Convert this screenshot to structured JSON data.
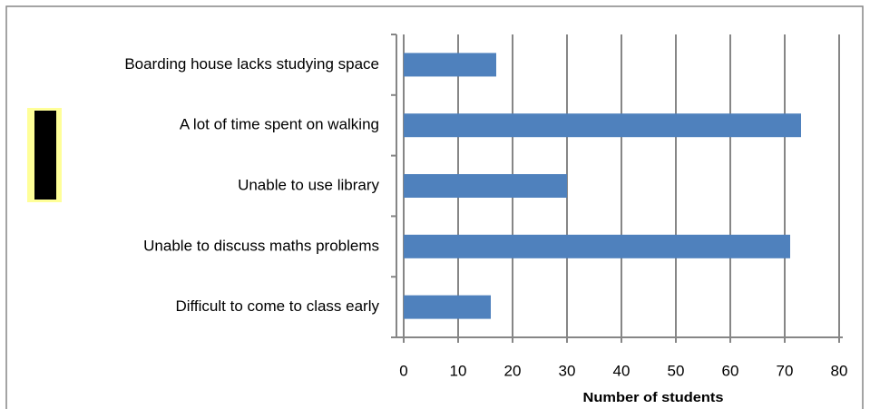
{
  "chart_data": {
    "type": "bar",
    "orientation": "horizontal",
    "categories": [
      "Boarding house lacks studying space",
      "A lot of time spent on walking",
      "Unable to use library",
      "Unable to discuss maths problems",
      "Difficult to come to class early"
    ],
    "values": [
      17,
      73,
      30,
      71,
      16
    ],
    "color": "#4f81bd",
    "xlabel": "Number of students",
    "xlim": [
      0,
      80
    ],
    "xticks": [
      0,
      10,
      20,
      30,
      40,
      50,
      60,
      70,
      80
    ],
    "grid": true
  }
}
